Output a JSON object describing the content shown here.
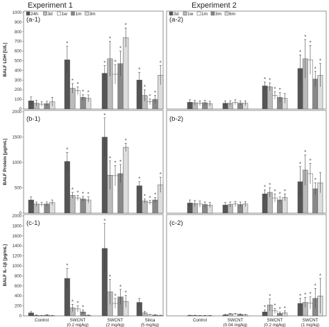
{
  "figure": {
    "experiment_titles": [
      "Experiment 1",
      "Experiment 2"
    ]
  },
  "colors": {
    "exp1": [
      "#555555",
      "#bbbbbb",
      "#ffffff",
      "#888888",
      "#dddddd"
    ],
    "exp2": [
      "#555555",
      "#bbbbbb",
      "#ffffff",
      "#888888",
      "#dddddd",
      "#eeeeee"
    ]
  },
  "chart_data": [
    {
      "panel": "(a-1)",
      "type": "bar",
      "ylabel": "BALF LDH [U/L]",
      "ylim": [
        0,
        1000
      ],
      "yticks": [
        "0",
        "100",
        "200",
        "300",
        "400",
        "500",
        "600",
        "700",
        "800",
        "900",
        "1000"
      ],
      "legend": [
        "24h",
        "3d",
        "1w",
        "1m",
        "3m"
      ],
      "categories": [
        "Control",
        "SWCNT\n(0.2 mg/kg)",
        "SWCNT\n(2 mg/kg)",
        "Silica\n(5 mg/kg)"
      ],
      "series": [
        {
          "name": "24h",
          "values": [
            85,
            510,
            370,
            300
          ],
          "err": [
            40,
            140,
            80,
            80
          ],
          "sig": [
            false,
            true,
            true,
            true
          ]
        },
        {
          "name": "3d",
          "values": [
            60,
            215,
            520,
            140
          ],
          "err": [
            30,
            50,
            180,
            60
          ],
          "sig": [
            false,
            true,
            true,
            true
          ]
        },
        {
          "name": "1w",
          "values": [
            50,
            190,
            360,
            75
          ],
          "err": [
            25,
            40,
            100,
            30
          ],
          "sig": [
            false,
            true,
            true,
            true
          ]
        },
        {
          "name": "1m",
          "values": [
            55,
            120,
            470,
            100
          ],
          "err": [
            25,
            30,
            130,
            40
          ],
          "sig": [
            false,
            true,
            true,
            true
          ]
        },
        {
          "name": "3m",
          "values": [
            75,
            110,
            740,
            350
          ],
          "err": [
            45,
            35,
            100,
            100
          ],
          "sig": [
            false,
            true,
            true,
            true
          ]
        }
      ]
    },
    {
      "panel": "(b-1)",
      "type": "bar",
      "ylabel": "BALF Protein [μg/mL]",
      "ylim": [
        0,
        2000
      ],
      "yticks": [
        "0",
        "500",
        "1000",
        "1500",
        "2000"
      ],
      "categories": [
        "Control",
        "SWCNT\n(0.2 mg/kg)",
        "SWCNT\n(2 mg/kg)",
        "Silica\n(5 mg/kg)"
      ],
      "series": [
        {
          "name": "24h",
          "values": [
            260,
            1020,
            1500,
            540
          ],
          "err": [
            60,
            180,
            380,
            80
          ],
          "sig": [
            false,
            true,
            true,
            true
          ]
        },
        {
          "name": "3d",
          "values": [
            180,
            350,
            750,
            240
          ],
          "err": [
            40,
            60,
            280,
            40
          ],
          "sig": [
            false,
            true,
            true,
            true
          ]
        },
        {
          "name": "1w",
          "values": [
            170,
            300,
            740,
            210
          ],
          "err": [
            40,
            50,
            200,
            40
          ],
          "sig": [
            false,
            true,
            true,
            true
          ]
        },
        {
          "name": "1m",
          "values": [
            180,
            280,
            780,
            260
          ],
          "err": [
            40,
            50,
            180,
            50
          ],
          "sig": [
            false,
            true,
            true,
            true
          ]
        },
        {
          "name": "3m",
          "values": [
            210,
            260,
            1300,
            560
          ],
          "err": [
            50,
            60,
            80,
            150
          ],
          "sig": [
            false,
            true,
            true,
            true
          ]
        }
      ]
    },
    {
      "panel": "(c-1)",
      "type": "bar",
      "ylabel": "BALF IL-1β [pg/mL]",
      "ylim": [
        0,
        2000
      ],
      "yticks": [
        "0",
        "200",
        "400",
        "600",
        "800",
        "1000",
        "1200",
        "1400",
        "1600",
        "1800",
        "2000"
      ],
      "categories": [
        "Control",
        "SWCNT\n(0.2 mg/kg)",
        "SWCNT\n(2 mg/kg)",
        "Silica\n(5 mg/kg)"
      ],
      "xticklabels": [
        "Control",
        "SWCNT",
        "(0.2 mg/kg)",
        "SWCNT",
        "(2 mg/kg)",
        "Silica",
        "(5 mg/kg)"
      ],
      "series": [
        {
          "name": "24h",
          "values": [
            60,
            750,
            1350,
            270
          ],
          "err": [
            25,
            200,
            500,
            80
          ],
          "sig": [
            false,
            true,
            true,
            false
          ]
        },
        {
          "name": "3d",
          "values": [
            10,
            160,
            480,
            60
          ],
          "err": [
            10,
            70,
            250,
            30
          ],
          "sig": [
            false,
            true,
            true,
            false
          ]
        },
        {
          "name": "1w",
          "values": [
            5,
            140,
            250,
            20
          ],
          "err": [
            5,
            60,
            100,
            10
          ],
          "sig": [
            false,
            true,
            true,
            false
          ]
        },
        {
          "name": "1m",
          "values": [
            15,
            80,
            380,
            15
          ],
          "err": [
            10,
            40,
            150,
            10
          ],
          "sig": [
            false,
            true,
            true,
            false
          ]
        },
        {
          "name": "3m",
          "values": [
            5,
            10,
            290,
            10
          ],
          "err": [
            5,
            10,
            120,
            5
          ],
          "sig": [
            false,
            false,
            true,
            false
          ]
        }
      ]
    },
    {
      "panel": "(a-2)",
      "type": "bar",
      "ylim": [
        0,
        1000
      ],
      "legend": [
        "3d",
        "1w",
        "1m",
        "3m",
        "6m"
      ],
      "categories": [
        "Control",
        "SWCNT\n(0.04 mg/kg)",
        "SWCNT\n(0.2 mg/kg)",
        "SWCNT\n(1 mg/kg)"
      ],
      "series": [
        {
          "name": "3d",
          "values": [
            70,
            60,
            240,
            420
          ],
          "err": [
            25,
            25,
            40,
            140
          ],
          "sig": [
            false,
            false,
            true,
            true
          ]
        },
        {
          "name": "1w",
          "values": [
            65,
            60,
            230,
            520
          ],
          "err": [
            25,
            25,
            40,
            200
          ],
          "sig": [
            false,
            false,
            true,
            true
          ]
        },
        {
          "name": "1m",
          "values": [
            60,
            70,
            140,
            510
          ],
          "err": [
            25,
            25,
            40,
            150
          ],
          "sig": [
            false,
            false,
            true,
            true
          ]
        },
        {
          "name": "3m",
          "values": [
            65,
            60,
            120,
            310
          ],
          "err": [
            25,
            25,
            50,
            80
          ],
          "sig": [
            false,
            false,
            true,
            true
          ]
        },
        {
          "name": "6m",
          "values": [
            55,
            60,
            110,
            350
          ],
          "err": [
            25,
            25,
            50,
            120
          ],
          "sig": [
            false,
            false,
            false,
            true
          ]
        }
      ]
    },
    {
      "panel": "(b-2)",
      "type": "bar",
      "ylim": [
        0,
        2000
      ],
      "categories": [
        "Control",
        "SWCNT\n(0.04 mg/kg)",
        "SWCNT\n(0.2 mg/kg)",
        "SWCNT\n(1 mg/kg)"
      ],
      "series": [
        {
          "name": "3d",
          "values": [
            200,
            160,
            380,
            620
          ],
          "err": [
            60,
            50,
            80,
            300
          ],
          "sig": [
            false,
            false,
            true,
            true
          ]
        },
        {
          "name": "1w",
          "values": [
            190,
            170,
            410,
            850
          ],
          "err": [
            60,
            50,
            90,
            300
          ],
          "sig": [
            false,
            false,
            true,
            true
          ]
        },
        {
          "name": "1m",
          "values": [
            180,
            180,
            300,
            780
          ],
          "err": [
            60,
            50,
            80,
            200
          ],
          "sig": [
            false,
            false,
            true,
            true
          ]
        },
        {
          "name": "3m",
          "values": [
            170,
            170,
            260,
            480
          ],
          "err": [
            50,
            50,
            60,
            120
          ],
          "sig": [
            false,
            false,
            true,
            true
          ]
        },
        {
          "name": "6m",
          "values": [
            160,
            180,
            310,
            600
          ],
          "err": [
            50,
            50,
            70,
            200
          ],
          "sig": [
            false,
            false,
            true,
            false
          ]
        }
      ]
    },
    {
      "panel": "(c-2)",
      "type": "bar",
      "ylim": [
        0,
        2000
      ],
      "categories": [
        "Control",
        "SWCNT\n(0.04 mg/kg)",
        "SWCNT\n(0.2 mg/kg)",
        "SWCNT\n(1 mg/kg)"
      ],
      "xticklabels": [
        "Control",
        "SWCNT",
        "(0.04 mg/kg)",
        "SWCNT",
        "(0.2 mg/kg)",
        "SWCNT",
        "(1 mg/kg)"
      ],
      "series": [
        {
          "name": "3d",
          "values": [
            10,
            20,
            80,
            250
          ],
          "err": [
            5,
            10,
            40,
            100
          ],
          "sig": [
            false,
            false,
            true,
            true
          ]
        },
        {
          "name": "1w",
          "values": [
            10,
            40,
            220,
            270
          ],
          "err": [
            5,
            10,
            120,
            100
          ],
          "sig": [
            false,
            false,
            true,
            true
          ]
        },
        {
          "name": "1m",
          "values": [
            5,
            40,
            100,
            260
          ],
          "err": [
            5,
            10,
            50,
            120
          ],
          "sig": [
            false,
            false,
            true,
            true
          ]
        },
        {
          "name": "3m",
          "values": [
            5,
            30,
            50,
            350
          ],
          "err": [
            5,
            10,
            30,
            200
          ],
          "sig": [
            false,
            false,
            true,
            true
          ]
        },
        {
          "name": "6m",
          "values": [
            5,
            20,
            60,
            400
          ],
          "err": [
            5,
            10,
            40,
            350
          ],
          "sig": [
            false,
            false,
            true,
            true
          ]
        }
      ]
    }
  ]
}
